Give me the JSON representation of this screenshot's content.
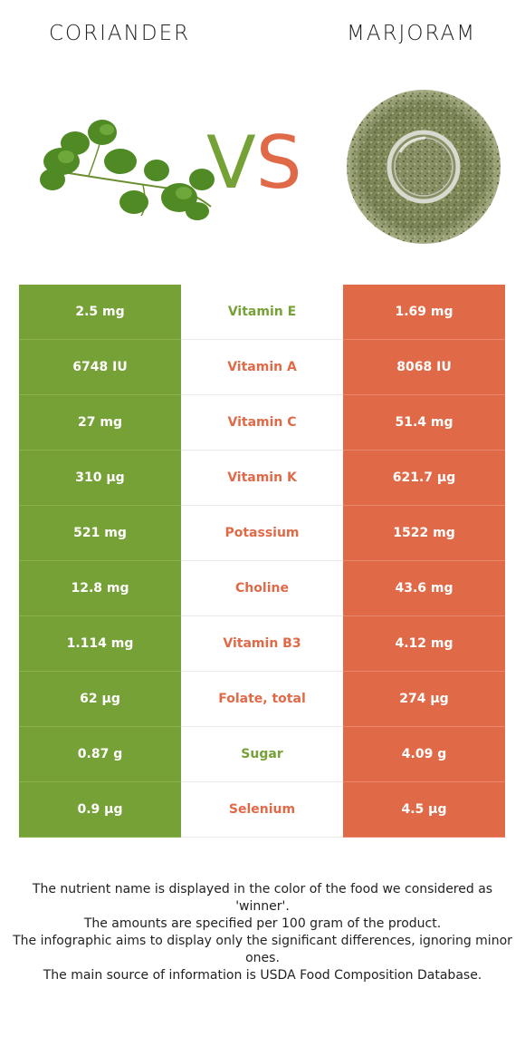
{
  "header": {
    "left_name": "CORIANDER",
    "right_name": "MARJORAM",
    "vs_v": "V",
    "vs_s": "S"
  },
  "colors": {
    "coriander": "#76a136",
    "marjoram": "#e06a48"
  },
  "images": {
    "left": "coriander-leaves",
    "right": "dried-marjoram-pile"
  },
  "rows": [
    {
      "left": "2.5 mg",
      "nutrient": "Vitamin E",
      "right": "1.69 mg",
      "winner": "left"
    },
    {
      "left": "6748 IU",
      "nutrient": "Vitamin A",
      "right": "8068 IU",
      "winner": "right"
    },
    {
      "left": "27 mg",
      "nutrient": "Vitamin C",
      "right": "51.4 mg",
      "winner": "right"
    },
    {
      "left": "310 µg",
      "nutrient": "Vitamin K",
      "right": "621.7 µg",
      "winner": "right"
    },
    {
      "left": "521 mg",
      "nutrient": "Potassium",
      "right": "1522 mg",
      "winner": "right"
    },
    {
      "left": "12.8 mg",
      "nutrient": "Choline",
      "right": "43.6 mg",
      "winner": "right"
    },
    {
      "left": "1.114 mg",
      "nutrient": "Vitamin B3",
      "right": "4.12 mg",
      "winner": "right"
    },
    {
      "left": "62 µg",
      "nutrient": "Folate, total",
      "right": "274 µg",
      "winner": "right"
    },
    {
      "left": "0.87 g",
      "nutrient": "Sugar",
      "right": "4.09 g",
      "winner": "left"
    },
    {
      "left": "0.9 µg",
      "nutrient": "Selenium",
      "right": "4.5 µg",
      "winner": "right"
    }
  ],
  "footnote": {
    "line1": "The nutrient name is displayed in the color of the food we considered as 'winner'.",
    "line2": "The amounts are specified per 100 gram of the product.",
    "line3": "The infographic aims to display only the significant differences, ignoring minor ones.",
    "line4": "The main source of information is USDA Food Composition Database."
  }
}
